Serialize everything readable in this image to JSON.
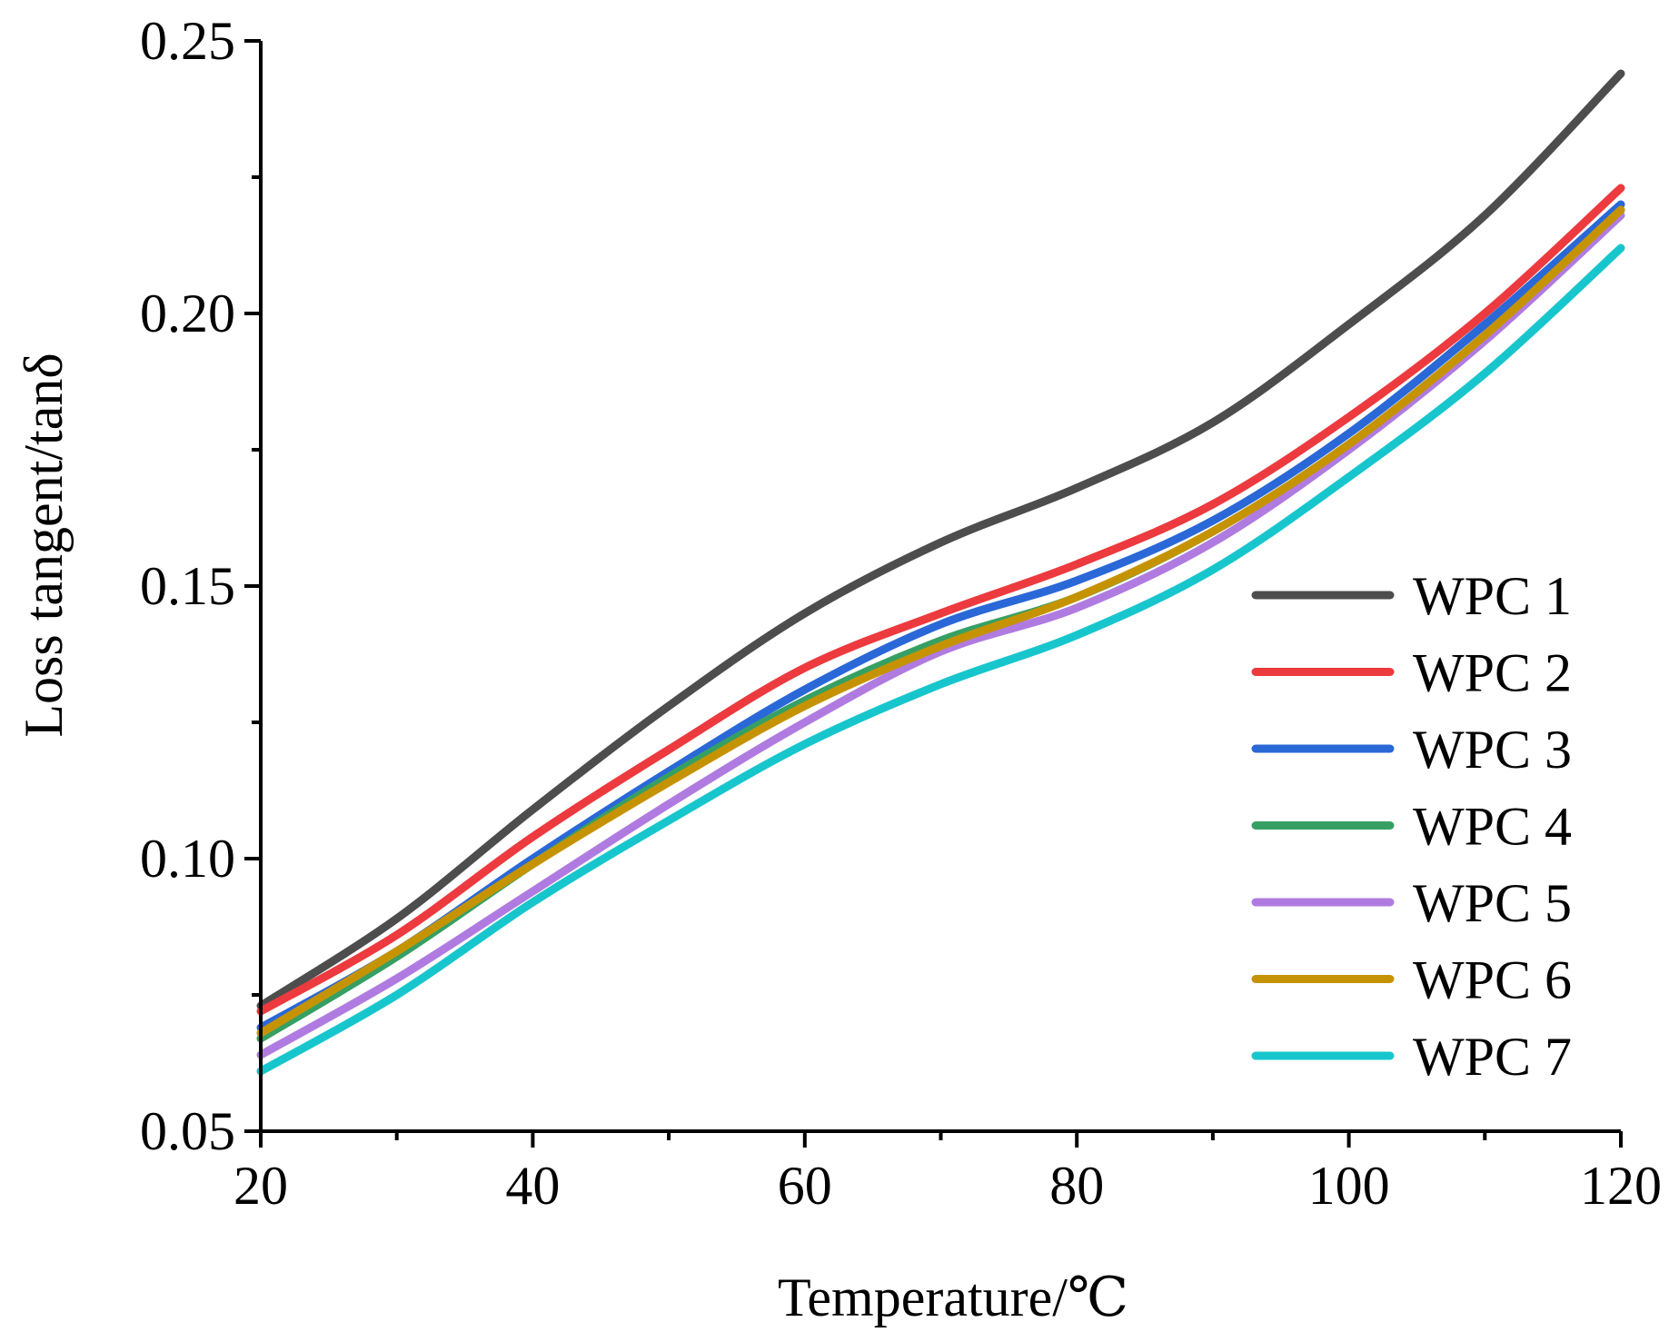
{
  "chart_data": {
    "type": "line",
    "title": "",
    "xlabel": "Temperature/℃",
    "ylabel": "Loss tangent/tanδ",
    "xlim": [
      20,
      120
    ],
    "ylim": [
      0.05,
      0.25
    ],
    "x_ticks": [
      20,
      40,
      60,
      80,
      100,
      120
    ],
    "x_tick_labels": [
      "20",
      "40",
      "60",
      "80",
      "100",
      "120"
    ],
    "y_ticks": [
      0.05,
      0.1,
      0.15,
      0.2,
      0.25
    ],
    "y_tick_labels": [
      "0.05",
      "0.10",
      "0.15",
      "0.20",
      "0.25"
    ],
    "grid": false,
    "legend_position": "lower-right",
    "x": [
      20,
      30,
      40,
      50,
      60,
      70,
      80,
      90,
      100,
      110,
      120
    ],
    "series": [
      {
        "name": "WPC 1",
        "color": "#4d4d4d",
        "values": [
          0.073,
          0.089,
          0.109,
          0.128,
          0.145,
          0.158,
          0.168,
          0.18,
          0.198,
          0.218,
          0.244
        ]
      },
      {
        "name": "WPC 2",
        "color": "#ec3a3f",
        "values": [
          0.072,
          0.086,
          0.104,
          0.12,
          0.135,
          0.145,
          0.154,
          0.165,
          0.181,
          0.2,
          0.223
        ]
      },
      {
        "name": "WPC 3",
        "color": "#2a68d8",
        "values": [
          0.069,
          0.083,
          0.1,
          0.116,
          0.131,
          0.143,
          0.151,
          0.162,
          0.178,
          0.198,
          0.22
        ]
      },
      {
        "name": "WPC 4",
        "color": "#36a064",
        "values": [
          0.067,
          0.082,
          0.099,
          0.115,
          0.129,
          0.14,
          0.148,
          0.16,
          0.176,
          0.196,
          0.219
        ]
      },
      {
        "name": "WPC 5",
        "color": "#b07be0",
        "values": [
          0.064,
          0.078,
          0.094,
          0.11,
          0.125,
          0.138,
          0.146,
          0.158,
          0.175,
          0.195,
          0.218
        ]
      },
      {
        "name": "WPC 6",
        "color": "#c69300",
        "values": [
          0.068,
          0.083,
          0.099,
          0.114,
          0.128,
          0.139,
          0.148,
          0.16,
          0.176,
          0.196,
          0.219
        ]
      },
      {
        "name": "WPC 7",
        "color": "#17c6cc",
        "values": [
          0.061,
          0.075,
          0.092,
          0.107,
          0.121,
          0.132,
          0.141,
          0.153,
          0.17,
          0.189,
          0.212
        ]
      }
    ]
  }
}
